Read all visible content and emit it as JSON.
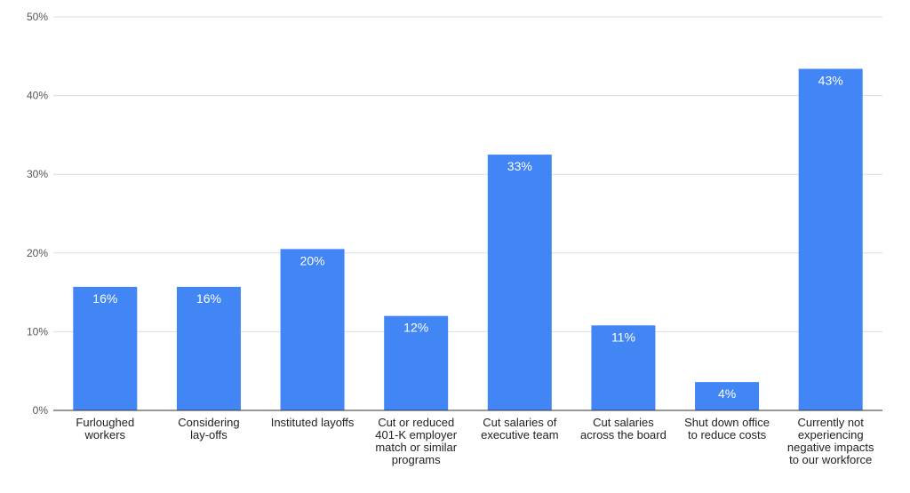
{
  "chart_data": {
    "type": "bar",
    "title": "",
    "xlabel": "",
    "ylabel": "",
    "ylim": [
      0,
      50
    ],
    "yticks": [
      0,
      10,
      20,
      30,
      40,
      50
    ],
    "ytick_labels": [
      "0%",
      "10%",
      "20%",
      "30%",
      "40%",
      "50%"
    ],
    "grid": true,
    "legend": "none",
    "bar_color": "#4285F4",
    "categories": [
      [
        "Furloughed",
        "workers"
      ],
      [
        "Considering",
        "lay-offs"
      ],
      [
        "Instituted layoffs"
      ],
      [
        "Cut or reduced",
        "401-K employer",
        "match or similar",
        "programs"
      ],
      [
        "Cut salaries of",
        "executive team"
      ],
      [
        "Cut salaries",
        "across the board"
      ],
      [
        "Shut down office",
        "to reduce costs"
      ],
      [
        "Currently not",
        "experiencing",
        "negative impacts",
        "to our workforce"
      ]
    ],
    "values": [
      15.7,
      15.7,
      20.5,
      12.0,
      32.5,
      10.8,
      3.6,
      43.4
    ],
    "value_labels": [
      "16%",
      "16%",
      "20%",
      "12%",
      "33%",
      "11%",
      "4%",
      "43%"
    ]
  }
}
